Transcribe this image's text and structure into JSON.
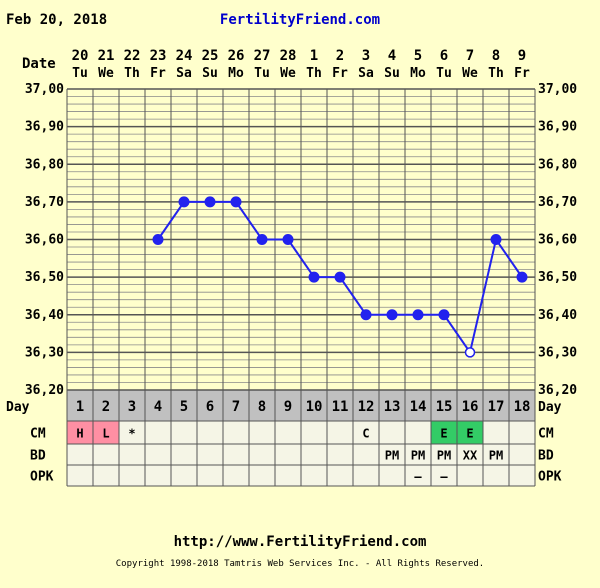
{
  "header": {
    "date": "Feb 20, 2018",
    "site": "FertilityFriend.com",
    "date_label": "Date"
  },
  "chart_data": {
    "type": "line",
    "x_dates": [
      "20",
      "21",
      "22",
      "23",
      "24",
      "25",
      "26",
      "27",
      "28",
      "1",
      "2",
      "3",
      "4",
      "5",
      "6",
      "7",
      "8",
      "9"
    ],
    "x_weekdays": [
      "Tu",
      "We",
      "Th",
      "Fr",
      "Sa",
      "Su",
      "Mo",
      "Tu",
      "We",
      "Th",
      "Fr",
      "Sa",
      "Su",
      "Mo",
      "Tu",
      "We",
      "Th",
      "Fr"
    ],
    "cycle_days": [
      "1",
      "2",
      "3",
      "4",
      "5",
      "6",
      "7",
      "8",
      "9",
      "10",
      "11",
      "12",
      "13",
      "14",
      "15",
      "16",
      "17",
      "18"
    ],
    "temperatures": [
      null,
      null,
      null,
      36.6,
      36.7,
      36.7,
      36.7,
      36.6,
      36.6,
      36.5,
      36.5,
      36.4,
      36.4,
      36.4,
      36.4,
      36.3,
      36.6,
      36.5
    ],
    "open_markers": [
      15
    ],
    "ylim": [
      36.2,
      37.0
    ],
    "yticks": [
      "37,00",
      "36,90",
      "36,80",
      "36,70",
      "36,60",
      "36,50",
      "36,40",
      "36,30",
      "36,20"
    ],
    "grid": true,
    "line_color": "#2222ee",
    "rows": {
      "day_label": "Day",
      "cm": {
        "label": "CM",
        "values": [
          "H",
          "L",
          "*",
          "",
          "",
          "",
          "",
          "",
          "",
          "",
          "",
          "C",
          "",
          "",
          "E",
          "E",
          "",
          ""
        ],
        "colors": [
          "#ff8fa3",
          "#ff8fa3",
          "",
          "",
          "",
          "",
          "",
          "",
          "",
          "",
          "",
          "",
          "",
          "",
          "#33cc66",
          "#33cc66",
          "",
          ""
        ]
      },
      "bd": {
        "label": "BD",
        "values": [
          "",
          "",
          "",
          "",
          "",
          "",
          "",
          "",
          "",
          "",
          "",
          "",
          "PM",
          "PM",
          "PM",
          "XX",
          "PM",
          ""
        ]
      },
      "opk": {
        "label": "OPK",
        "values": [
          "",
          "",
          "",
          "",
          "",
          "",
          "",
          "",
          "",
          "",
          "",
          "",
          "",
          "—",
          "—",
          "",
          "",
          ""
        ]
      }
    }
  },
  "footer": {
    "url": "http://www.FertilityFriend.com",
    "copyright": "Copyright 1998-2018 Tamtris Web Services Inc. - All Rights Reserved."
  }
}
